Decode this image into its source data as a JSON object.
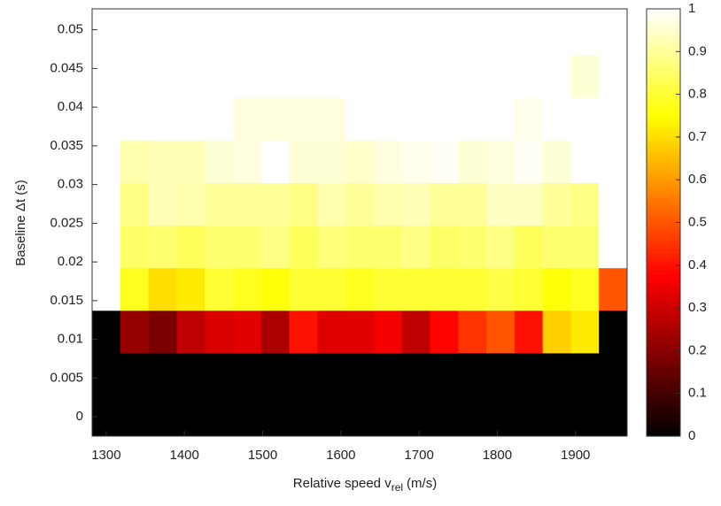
{
  "chart_data": {
    "type": "heatmap",
    "xlabel": "Relative speed v",
    "xlabel_sub": "rel",
    "xlabel_end": "(m/s)",
    "ylabel": "Baseline Δt (s)",
    "x": [
      1300,
      1336,
      1372,
      1408,
      1444,
      1480,
      1516,
      1552,
      1588,
      1624,
      1660,
      1696,
      1732,
      1768,
      1804,
      1840,
      1876,
      1912,
      1948
    ],
    "y": [
      0,
      0.0055,
      0.011,
      0.0165,
      0.022,
      0.0275,
      0.033,
      0.0385,
      0.044,
      0.0495
    ],
    "z": [
      [
        0,
        0,
        0,
        0,
        0,
        0,
        0,
        0,
        0,
        0,
        0,
        0,
        0,
        0,
        0,
        0,
        0,
        0,
        0
      ],
      [
        0,
        0,
        0,
        0,
        0,
        0,
        0,
        0,
        0,
        0,
        0,
        0,
        0,
        0,
        0,
        0,
        0,
        0,
        0
      ],
      [
        0,
        0.22,
        0.18,
        0.28,
        0.32,
        0.33,
        0.25,
        0.4,
        0.33,
        0.33,
        0.36,
        0.28,
        0.38,
        0.45,
        0.5,
        0.4,
        0.68,
        0.72,
        0
      ],
      [
        1,
        0.78,
        0.7,
        0.72,
        0.8,
        0.78,
        0.76,
        0.8,
        0.8,
        0.78,
        0.8,
        0.8,
        0.8,
        0.8,
        0.82,
        0.8,
        0.76,
        0.78,
        0.5
      ],
      [
        1,
        0.85,
        0.86,
        0.84,
        0.86,
        0.86,
        0.88,
        0.84,
        0.87,
        0.86,
        0.86,
        0.88,
        0.85,
        0.86,
        0.88,
        0.84,
        0.86,
        0.86,
        1
      ],
      [
        1,
        0.88,
        0.93,
        0.92,
        0.9,
        0.9,
        0.9,
        0.88,
        0.92,
        0.9,
        0.92,
        0.93,
        0.9,
        0.9,
        0.94,
        0.94,
        0.9,
        0.88,
        1
      ],
      [
        1,
        0.92,
        0.93,
        0.93,
        0.96,
        0.97,
        1,
        0.96,
        0.96,
        0.95,
        0.97,
        0.98,
        0.99,
        0.96,
        0.97,
        0.99,
        0.96,
        1,
        1
      ],
      [
        1,
        1,
        1,
        1,
        1,
        0.97,
        0.97,
        0.97,
        0.97,
        1,
        1,
        1,
        1,
        1,
        1,
        0.98,
        1,
        1,
        1
      ],
      [
        1,
        1,
        1,
        1,
        1,
        1,
        1,
        1,
        1,
        1,
        1,
        1,
        1,
        1,
        1,
        1,
        1,
        0.96,
        1
      ],
      [
        1,
        1,
        1,
        1,
        1,
        1,
        1,
        1,
        1,
        1,
        1,
        1,
        1,
        1,
        1,
        1,
        1,
        1,
        1
      ]
    ],
    "xlim": [
      1282,
      1966
    ],
    "ylim": [
      -0.0025,
      0.0527
    ],
    "xticks": [
      1300,
      1400,
      1500,
      1600,
      1700,
      1800,
      1900
    ],
    "yticks": [
      0,
      0.005,
      0.01,
      0.015,
      0.02,
      0.025,
      0.03,
      0.035,
      0.04,
      0.045,
      0.05
    ],
    "colormap": "hot",
    "clim": [
      0,
      1
    ],
    "cticks": [
      0,
      0.1,
      0.2,
      0.3,
      0.4,
      0.5,
      0.6,
      0.7,
      0.8,
      0.9,
      1
    ]
  }
}
